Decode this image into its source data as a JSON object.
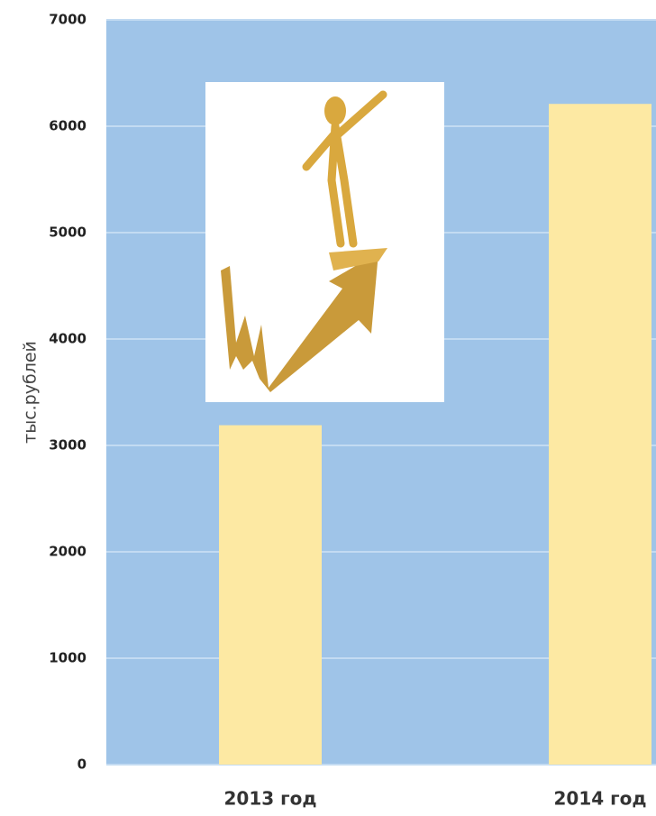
{
  "chart_data": {
    "type": "bar",
    "y_label": "тыс.рублей",
    "categories": [
      "2013 год",
      "2014 год"
    ],
    "values": [
      3190,
      6210
    ],
    "color": "#fde9a3",
    "ylim": [
      0,
      7000
    ],
    "yticks": [
      0,
      1000,
      2000,
      3000,
      4000,
      5000,
      6000,
      7000
    ],
    "grid": true
  }
}
